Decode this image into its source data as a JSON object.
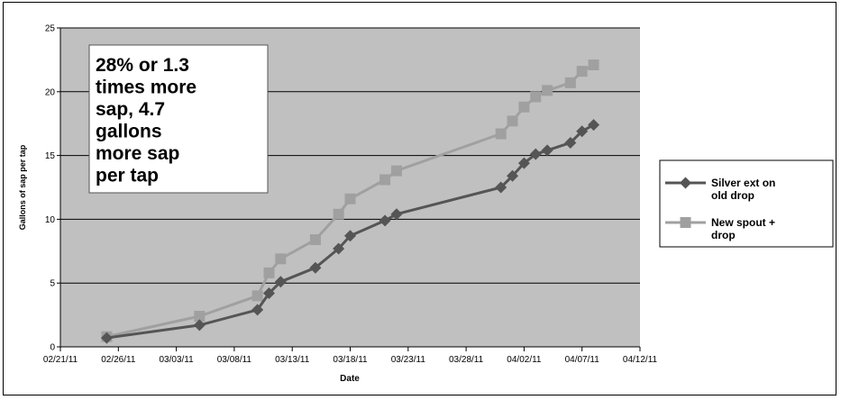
{
  "chart_data": {
    "type": "line",
    "title": "",
    "xlabel": "Date",
    "ylabel": "Gallons of sap per tap",
    "x_axis_type": "date",
    "xlim": [
      "2011-02-21",
      "2011-04-12"
    ],
    "ylim": [
      0,
      25
    ],
    "x_tick_labels": [
      "02/21/11",
      "02/26/11",
      "03/03/11",
      "03/08/11",
      "03/13/11",
      "03/18/11",
      "03/23/11",
      "03/28/11",
      "04/02/11",
      "04/07/11",
      "04/12/11"
    ],
    "y_ticks": [
      0,
      5,
      10,
      15,
      20,
      25
    ],
    "grid": "horizontal",
    "plot_background": "#c0c0c0",
    "legend_position": "right",
    "series": [
      {
        "name": "Silver ext on old drop",
        "color": "#555555",
        "marker": "diamond",
        "points": [
          {
            "x": "2011-02-25",
            "y": 0.7
          },
          {
            "x": "2011-03-05",
            "y": 1.7
          },
          {
            "x": "2011-03-10",
            "y": 2.9
          },
          {
            "x": "2011-03-11",
            "y": 4.2
          },
          {
            "x": "2011-03-12",
            "y": 5.1
          },
          {
            "x": "2011-03-15",
            "y": 6.2
          },
          {
            "x": "2011-03-17",
            "y": 7.7
          },
          {
            "x": "2011-03-18",
            "y": 8.7
          },
          {
            "x": "2011-03-21",
            "y": 9.9
          },
          {
            "x": "2011-03-22",
            "y": 10.4
          },
          {
            "x": "2011-03-31",
            "y": 12.5
          },
          {
            "x": "2011-04-01",
            "y": 13.4
          },
          {
            "x": "2011-04-02",
            "y": 14.4
          },
          {
            "x": "2011-04-03",
            "y": 15.1
          },
          {
            "x": "2011-04-04",
            "y": 15.4
          },
          {
            "x": "2011-04-06",
            "y": 16.0
          },
          {
            "x": "2011-04-07",
            "y": 16.9
          },
          {
            "x": "2011-04-08",
            "y": 17.4
          }
        ]
      },
      {
        "name": "New spout + drop",
        "color": "#a0a0a0",
        "marker": "square",
        "points": [
          {
            "x": "2011-02-25",
            "y": 0.8
          },
          {
            "x": "2011-03-05",
            "y": 2.4
          },
          {
            "x": "2011-03-10",
            "y": 4.0
          },
          {
            "x": "2011-03-11",
            "y": 5.8
          },
          {
            "x": "2011-03-12",
            "y": 6.9
          },
          {
            "x": "2011-03-15",
            "y": 8.4
          },
          {
            "x": "2011-03-17",
            "y": 10.4
          },
          {
            "x": "2011-03-18",
            "y": 11.6
          },
          {
            "x": "2011-03-21",
            "y": 13.1
          },
          {
            "x": "2011-03-22",
            "y": 13.8
          },
          {
            "x": "2011-03-31",
            "y": 16.7
          },
          {
            "x": "2011-04-01",
            "y": 17.7
          },
          {
            "x": "2011-04-02",
            "y": 18.8
          },
          {
            "x": "2011-04-03",
            "y": 19.6
          },
          {
            "x": "2011-04-04",
            "y": 20.1
          },
          {
            "x": "2011-04-06",
            "y": 20.7
          },
          {
            "x": "2011-04-07",
            "y": 21.6
          },
          {
            "x": "2011-04-08",
            "y": 22.1
          }
        ]
      }
    ],
    "annotation": {
      "lines": [
        "28% or 1.3",
        "times more",
        "sap, 4.7",
        "gallons",
        "more sap",
        "per tap"
      ]
    },
    "legend": {
      "entries": [
        {
          "lines": [
            "Silver ext on",
            "old drop"
          ]
        },
        {
          "lines": [
            "New spout +",
            "drop"
          ]
        }
      ]
    }
  }
}
